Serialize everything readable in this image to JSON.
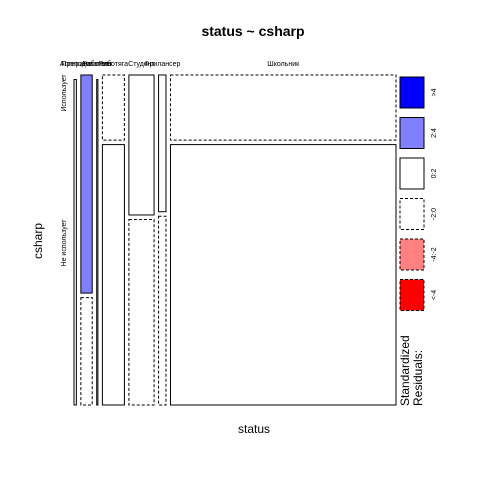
{
  "chart_data": {
    "type": "mosaic",
    "title": "status ~ csharp",
    "xlabel": "status",
    "ylabel": "csharp",
    "x_categories": [
      "Аспирант",
      "Преподаватель",
      "Работает",
      "Работяга",
      "Студент",
      "Фрилансер",
      "Школьник"
    ],
    "y_categories": [
      "Использует",
      "Не использует"
    ],
    "column_widths": [
      0.008,
      0.0385,
      0.004,
      0.0746,
      0.0853,
      0.0251,
      0.7645
    ],
    "cells": [
      {
        "status": "Аспирант",
        "csharp": "Использует",
        "proportion": 0.0,
        "residual_class": "0:2"
      },
      {
        "status": "Аспирант",
        "csharp": "Не использует",
        "proportion": 1.0,
        "residual_class": "0:2"
      },
      {
        "status": "Преподаватель",
        "csharp": "Использует",
        "proportion": 0.67,
        "residual_class": "2:4"
      },
      {
        "status": "Преподаватель",
        "csharp": "Не использует",
        "proportion": 0.33,
        "residual_class": "-2:0"
      },
      {
        "status": "Работает",
        "csharp": "Использует",
        "proportion": 0.0,
        "residual_class": "0:2"
      },
      {
        "status": "Работает",
        "csharp": "Не использует",
        "proportion": 1.0,
        "residual_class": "0:2"
      },
      {
        "status": "Работяга",
        "csharp": "Использует",
        "proportion": 0.2,
        "residual_class": "-2:0"
      },
      {
        "status": "Работяга",
        "csharp": "Не использует",
        "proportion": 0.8,
        "residual_class": "0:2"
      },
      {
        "status": "Студент",
        "csharp": "Использует",
        "proportion": 0.43,
        "residual_class": "0:2"
      },
      {
        "status": "Студент",
        "csharp": "Не использует",
        "proportion": 0.57,
        "residual_class": "-2:0"
      },
      {
        "status": "Фрилансер",
        "csharp": "Использует",
        "proportion": 0.42,
        "residual_class": "0:2"
      },
      {
        "status": "Фрилансер",
        "csharp": "Не использует",
        "proportion": 0.58,
        "residual_class": "-2:0"
      },
      {
        "status": "Школьник",
        "csharp": "Использует",
        "proportion": 0.2,
        "residual_class": "-2:0"
      },
      {
        "status": "Школьник",
        "csharp": "Не использует",
        "proportion": 0.8,
        "residual_class": "0:2"
      }
    ],
    "legend": {
      "title_line1": "Standardized",
      "title_line2": "Residuals:",
      "placement": "right",
      "entries": [
        {
          "label": ">4",
          "fill": "#0000FF",
          "dashed": false
        },
        {
          "label": "2:4",
          "fill": "#8080FF",
          "dashed": false
        },
        {
          "label": "0:2",
          "fill": "#FFFFFF",
          "dashed": false
        },
        {
          "label": "-2:0",
          "fill": "#FFFFFF",
          "dashed": true
        },
        {
          "label": "-4:-2",
          "fill": "#FF8080",
          "dashed": true
        },
        {
          "label": "<-4",
          "fill": "#FF0000",
          "dashed": true
        }
      ]
    }
  }
}
